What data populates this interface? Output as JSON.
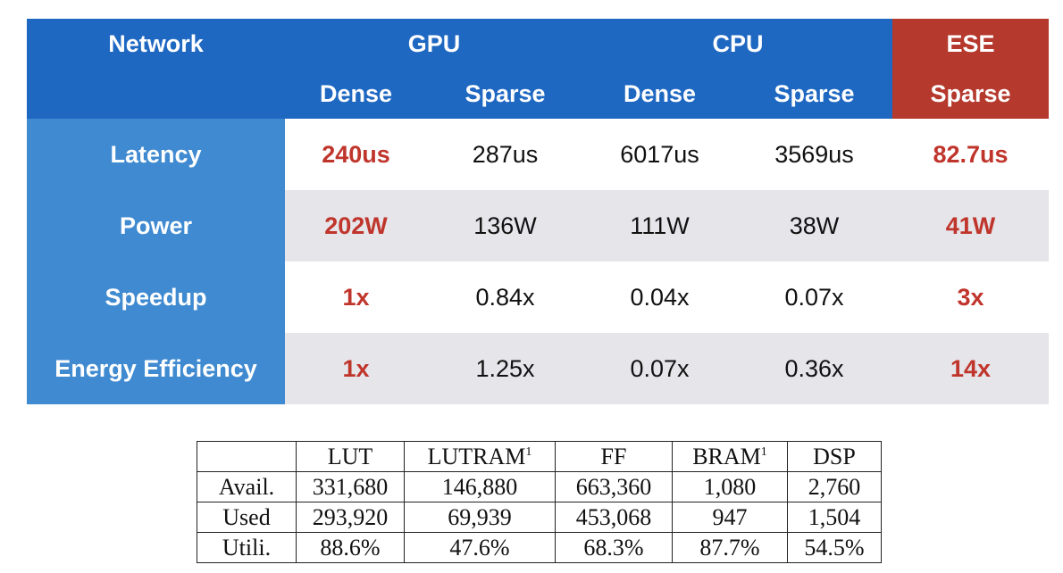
{
  "comparison": {
    "header": {
      "network": "Network",
      "gpu": "GPU",
      "cpu": "CPU",
      "ese": "ESE",
      "gpu_dense": "Dense",
      "gpu_sparse": "Sparse",
      "cpu_dense": "Dense",
      "cpu_sparse": "Sparse",
      "ese_sparse": "Sparse"
    },
    "rows": [
      {
        "label": "Latency",
        "gpu_dense": "240us",
        "gpu_sparse": "287us",
        "cpu_dense": "6017us",
        "cpu_sparse": "3569us",
        "ese_sparse": "82.7us"
      },
      {
        "label": "Power",
        "gpu_dense": "202W",
        "gpu_sparse": "136W",
        "cpu_dense": "111W",
        "cpu_sparse": "38W",
        "ese_sparse": "41W"
      },
      {
        "label": "Speedup",
        "gpu_dense": "1x",
        "gpu_sparse": "0.84x",
        "cpu_dense": "0.04x",
        "cpu_sparse": "0.07x",
        "ese_sparse": "3x"
      },
      {
        "label": "Energy Efficiency",
        "gpu_dense": "1x",
        "gpu_sparse": "1.25x",
        "cpu_dense": "0.07x",
        "cpu_sparse": "0.36x",
        "ese_sparse": "14x"
      }
    ],
    "colors": {
      "header_blue": "#1f68c2",
      "label_blue": "#3f8ad0",
      "ese_red": "#b5392d",
      "highlight_red": "#c0352b",
      "stripe_gray": "#e5e5ea"
    }
  },
  "resources": {
    "columns": [
      "",
      "LUT",
      "LUTRAM",
      "FF",
      "BRAM",
      "DSP"
    ],
    "footnote_mark": "1",
    "rows": [
      {
        "label": "Avail.",
        "values": [
          "331,680",
          "146,880",
          "663,360",
          "1,080",
          "2,760"
        ]
      },
      {
        "label": "Used",
        "values": [
          "293,920",
          "69,939",
          "453,068",
          "947",
          "1,504"
        ]
      },
      {
        "label": "Utili.",
        "values": [
          "88.6%",
          "47.6%",
          "68.3%",
          "87.7%",
          "54.5%"
        ]
      }
    ]
  }
}
